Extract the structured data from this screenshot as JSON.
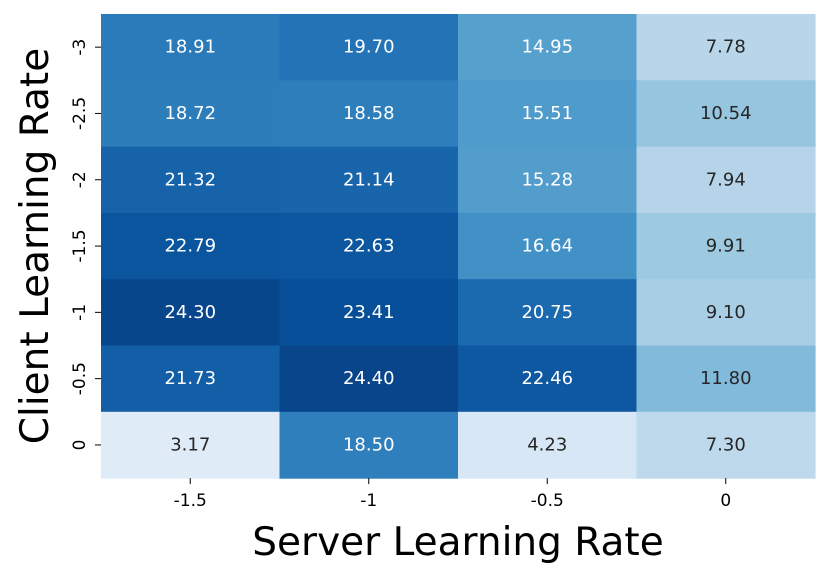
{
  "chart_data": {
    "type": "heatmap",
    "title": "",
    "xlabel": "Server Learning Rate",
    "ylabel": "Client Learning Rate",
    "x_categories": [
      "-1.5",
      "-1",
      "-0.5",
      "0"
    ],
    "y_categories": [
      "-3",
      "-2.5",
      "-2",
      "-1.5",
      "-1",
      "-0.5",
      "0"
    ],
    "values": [
      [
        18.91,
        19.7,
        14.95,
        7.78
      ],
      [
        18.72,
        18.58,
        15.51,
        10.54
      ],
      [
        21.32,
        21.14,
        15.28,
        7.94
      ],
      [
        22.79,
        22.63,
        16.64,
        9.91
      ],
      [
        24.3,
        23.41,
        20.75,
        9.1
      ],
      [
        21.73,
        24.4,
        22.46,
        11.8
      ],
      [
        3.17,
        18.5,
        4.23,
        7.3
      ]
    ],
    "value_labels": [
      [
        "18.91",
        "19.70",
        "14.95",
        "7.78"
      ],
      [
        "18.72",
        "18.58",
        "15.51",
        "10.54"
      ],
      [
        "21.32",
        "21.14",
        "15.28",
        "7.94"
      ],
      [
        "22.79",
        "22.63",
        "16.64",
        "9.91"
      ],
      [
        "24.30",
        "23.41",
        "20.75",
        "9.10"
      ],
      [
        "21.73",
        "24.40",
        "22.46",
        "11.80"
      ],
      [
        "3.17",
        "18.50",
        "4.23",
        "7.30"
      ]
    ],
    "colormap": "Blues",
    "colorbar": false,
    "grid": false
  }
}
